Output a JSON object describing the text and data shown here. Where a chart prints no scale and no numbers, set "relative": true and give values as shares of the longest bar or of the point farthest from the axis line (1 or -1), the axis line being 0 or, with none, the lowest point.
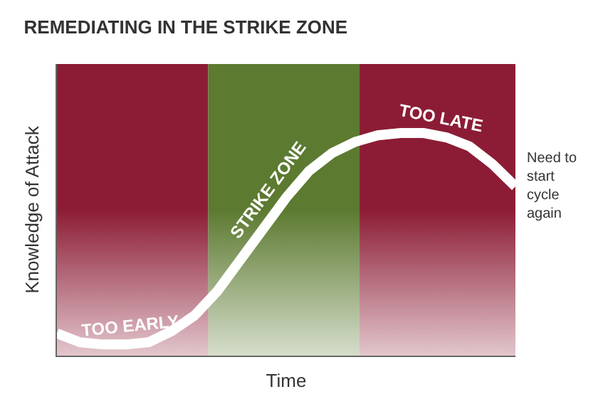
{
  "chart_data": {
    "type": "line",
    "title": "REMEDIATING IN THE STRIKE ZONE",
    "xlabel": "Time",
    "ylabel": "Knowledge of Attack",
    "relative": true,
    "categories": [
      null,
      null,
      null,
      null,
      null,
      null,
      null,
      null,
      null,
      null,
      null,
      null,
      null,
      null,
      null,
      null,
      null,
      null,
      null,
      null,
      null
    ],
    "series": [
      {
        "color": "#ffffff",
        "values": [
          0.1,
          0.06,
          0.05,
          0.05,
          0.06,
          0.11,
          0.18,
          0.29,
          0.43,
          0.57,
          0.71,
          0.83,
          0.91,
          0.96,
          0.99,
          1,
          1,
          0.98,
          0.94,
          0.86,
          0.76
        ]
      }
    ],
    "annotations": [
      "TOO EARLY",
      "STRIKE ZONE",
      "TOO LATE",
      "Need to start cycle again"
    ]
  }
}
